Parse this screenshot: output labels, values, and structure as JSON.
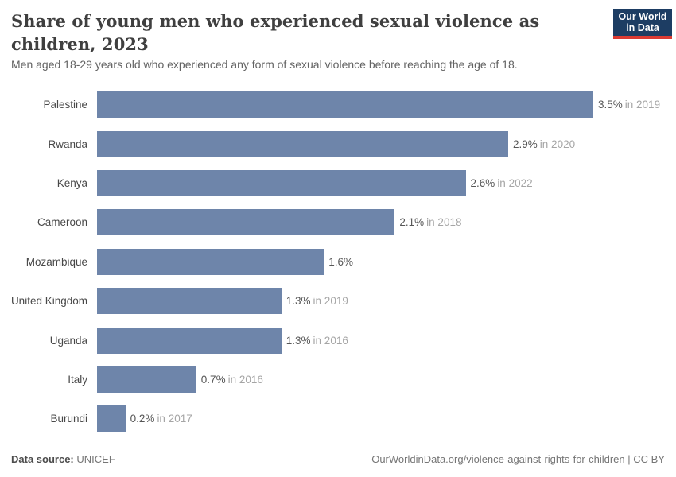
{
  "header": {
    "title": "Share of young men who experienced sexual violence as children, 2023",
    "subtitle": "Men aged 18-29 years old who experienced any form of sexual violence before reaching the age of 18.",
    "logo": {
      "line1": "Our World",
      "line2": "in Data"
    }
  },
  "chart_data": {
    "type": "bar",
    "orientation": "horizontal",
    "title": "Share of young men who experienced sexual violence as children, 2023",
    "xlabel": "",
    "ylabel": "",
    "xlim": [
      0,
      3.5
    ],
    "grid": false,
    "legend": false,
    "bar_color": "#6e85aa",
    "categories": [
      "Palestine",
      "Rwanda",
      "Kenya",
      "Cameroon",
      "Mozambique",
      "United Kingdom",
      "Uganda",
      "Italy",
      "Burundi"
    ],
    "values": [
      3.5,
      2.9,
      2.6,
      2.1,
      1.6,
      1.3,
      1.3,
      0.7,
      0.2
    ],
    "value_labels": [
      "3.5%",
      "2.9%",
      "2.6%",
      "2.1%",
      "1.6%",
      "1.3%",
      "1.3%",
      "0.7%",
      "0.2%"
    ],
    "year_labels": [
      "in 2019",
      "in 2020",
      "in 2022",
      "in 2018",
      "",
      "in 2019",
      "in 2016",
      "in 2016",
      "in 2017"
    ]
  },
  "footer": {
    "datasource_label": "Data source:",
    "datasource_value": "UNICEF",
    "url_text": "OurWorldinData.org/violence-against-rights-for-children",
    "separator": "|",
    "license": "CC BY"
  }
}
